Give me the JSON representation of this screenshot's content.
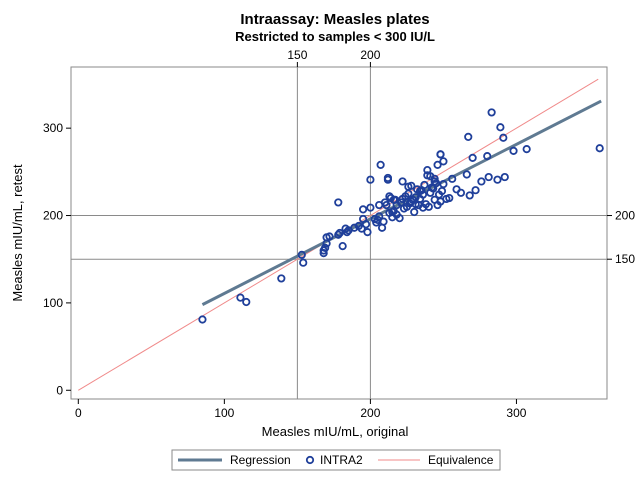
{
  "chart_data": {
    "type": "scatter",
    "title": "Intraassay: Measles plates",
    "subtitle": "Restricted to samples < 300 IU/L",
    "xlabel": "Measles mIU/mL, original",
    "ylabel": "Measles mIU/mL, retest",
    "xlim": [
      -5,
      362
    ],
    "ylim": [
      -10,
      370
    ],
    "x_ticks": [
      0,
      100,
      200,
      300
    ],
    "y_ticks": [
      0,
      100,
      200,
      300
    ],
    "x_top_ticks": [
      150,
      200
    ],
    "y_right_ticks": [
      150,
      200
    ],
    "reference_lines": {
      "x": [
        150,
        200
      ],
      "y": [
        150,
        200
      ]
    },
    "grid": false,
    "legend_position": "bottom",
    "legend": [
      {
        "name": "Regression",
        "symbol": "line",
        "color": "#5f7a92"
      },
      {
        "name": "INTRA2",
        "symbol": "circle",
        "color": "#1f3f9a"
      },
      {
        "name": "Equivalence",
        "symbol": "line",
        "color": "#f08a8a"
      }
    ],
    "regression": {
      "x": [
        85,
        358
      ],
      "y": [
        98,
        331
      ]
    },
    "equivalence": {
      "x": [
        0,
        356
      ],
      "y": [
        0,
        356
      ]
    },
    "series": [
      {
        "name": "INTRA2",
        "x": [
          85,
          111,
          115,
          139,
          154,
          153,
          168,
          168,
          169,
          170,
          170,
          172,
          178,
          179,
          181,
          183,
          184,
          185,
          189,
          192,
          194,
          195,
          197,
          178,
          195,
          198,
          200,
          204,
          205,
          206,
          208,
          209,
          211,
          212,
          213,
          214,
          215,
          216,
          218,
          220,
          221,
          222,
          223,
          224,
          225,
          226,
          227,
          228,
          229,
          230,
          231,
          232,
          233,
          234,
          235,
          236,
          237,
          238,
          239,
          240,
          241,
          242,
          243,
          244,
          245,
          246,
          247,
          248,
          249,
          250,
          252,
          254,
          256,
          246,
          248,
          250,
          244,
          241,
          239,
          234,
          228,
          222,
          218,
          216,
          213,
          210,
          212,
          215,
          217,
          200,
          203,
          207,
          259,
          262,
          266,
          268,
          270,
          272,
          276,
          281,
          287,
          292,
          267,
          280,
          283,
          289,
          291,
          298,
          307,
          357,
          206,
          244,
          248,
          236,
          231,
          226
        ],
        "y": [
          81,
          106,
          101,
          128,
          146,
          155,
          157,
          160,
          163,
          168,
          175,
          176,
          178,
          180,
          165,
          185,
          181,
          183,
          186,
          188,
          185,
          207,
          190,
          215,
          196,
          181,
          209,
          192,
          195,
          199,
          186,
          193,
          212,
          241,
          203,
          220,
          198,
          205,
          212,
          197,
          215,
          219,
          208,
          222,
          210,
          225,
          214,
          216,
          218,
          204,
          221,
          230,
          212,
          219,
          229,
          224,
          235,
          213,
          246,
          210,
          226,
          232,
          231,
          242,
          237,
          212,
          224,
          216,
          228,
          236,
          219,
          220,
          242,
          258,
          270,
          262,
          239,
          245,
          252,
          228,
          234,
          239,
          201,
          218,
          222,
          215,
          243,
          204,
          218,
          241,
          196,
          258,
          230,
          226,
          247,
          223,
          266,
          229,
          239,
          244,
          241,
          244,
          290,
          268,
          318,
          301,
          289,
          274,
          276,
          277,
          212,
          218,
          270,
          209,
          213,
          233
        ]
      }
    ]
  }
}
